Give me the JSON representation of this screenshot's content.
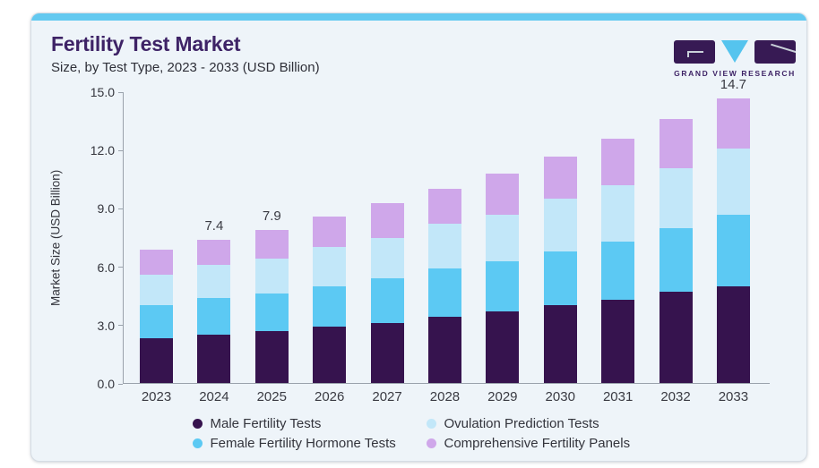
{
  "header": {
    "title": "Fertility Test Market",
    "subtitle": "Size, by Test Type, 2023 - 2033 (USD Billion)",
    "logo": {
      "text": "GRAND VIEW RESEARCH"
    }
  },
  "colors": {
    "accent_bar": "#63c9f0",
    "card_background": "#eef4f9",
    "card_border": "#d5dce4",
    "title_text": "#3e2366",
    "body_text": "#33343c",
    "axis_line": "#9aa2ac",
    "logo_purple": "#371a54",
    "logo_blue": "#55c4ee"
  },
  "chart_data": {
    "type": "bar",
    "stacked": true,
    "title": "Fertility Test Market",
    "subtitle": "Size, by Test Type, 2023 - 2033 (USD Billion)",
    "xlabel": "",
    "ylabel": "Market Size (USD Billion)",
    "ylim": [
      0,
      15
    ],
    "yticks": [
      0,
      3,
      6,
      9,
      12,
      15
    ],
    "ytick_labels": [
      "0.0",
      "3.0",
      "6.0",
      "9.0",
      "12.0",
      "15.0"
    ],
    "grid": false,
    "legend_position": "bottom",
    "categories": [
      "2023",
      "2024",
      "2025",
      "2026",
      "2027",
      "2028",
      "2029",
      "2030",
      "2031",
      "2032",
      "2033"
    ],
    "series": [
      {
        "name": "Male Fertility Tests",
        "color": "#36134e",
        "values": [
          2.3,
          2.5,
          2.7,
          2.9,
          3.1,
          3.4,
          3.7,
          4.0,
          4.3,
          4.7,
          5.0
        ]
      },
      {
        "name": "Female Fertility Hormone Tests",
        "color": "#5cc9f3",
        "values": [
          1.7,
          1.9,
          1.9,
          2.1,
          2.3,
          2.5,
          2.6,
          2.8,
          3.0,
          3.3,
          3.7
        ]
      },
      {
        "name": "Ovulation Prediction Tests",
        "color": "#c2e7f9",
        "values": [
          1.6,
          1.7,
          1.8,
          2.0,
          2.1,
          2.3,
          2.4,
          2.7,
          2.9,
          3.1,
          3.4
        ]
      },
      {
        "name": "Comprehensive Fertility Panels",
        "color": "#cfa7ea",
        "values": [
          1.3,
          1.3,
          1.5,
          1.6,
          1.8,
          1.8,
          2.1,
          2.2,
          2.4,
          2.5,
          2.6
        ]
      }
    ],
    "totals": [
      6.9,
      7.4,
      7.9,
      8.6,
      9.3,
      10.0,
      10.8,
      11.7,
      12.6,
      13.6,
      14.7
    ],
    "bar_total_labels": [
      "",
      "7.4",
      "7.9",
      "",
      "",
      "",
      "",
      "",
      "",
      "",
      "14.7"
    ],
    "legend_display_order": [
      0,
      2,
      1,
      3
    ]
  }
}
